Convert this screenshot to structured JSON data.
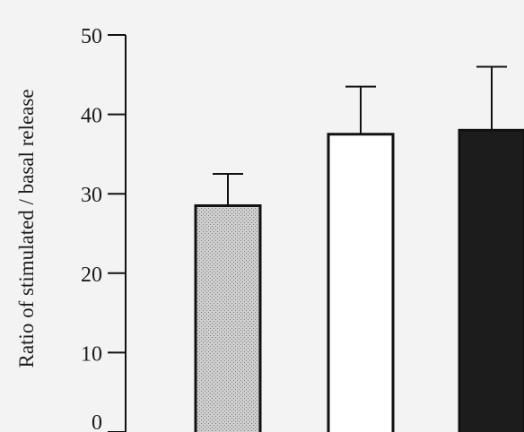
{
  "chart_data": {
    "type": "bar",
    "title": "",
    "xlabel": "",
    "ylabel": "Ratio of stimulated / basal release",
    "ylim": [
      0,
      50
    ],
    "yticks": [
      0,
      10,
      20,
      30,
      40,
      50
    ],
    "grid": false,
    "categories": [
      "",
      "",
      ""
    ],
    "values": [
      28.5,
      37.5,
      38
    ],
    "errors": [
      4,
      6,
      8
    ],
    "fill_styles": [
      "stippled-gray",
      "white",
      "black"
    ],
    "colors": [
      "#bcbcbc",
      "#ffffff",
      "#1c1c1c"
    ]
  }
}
